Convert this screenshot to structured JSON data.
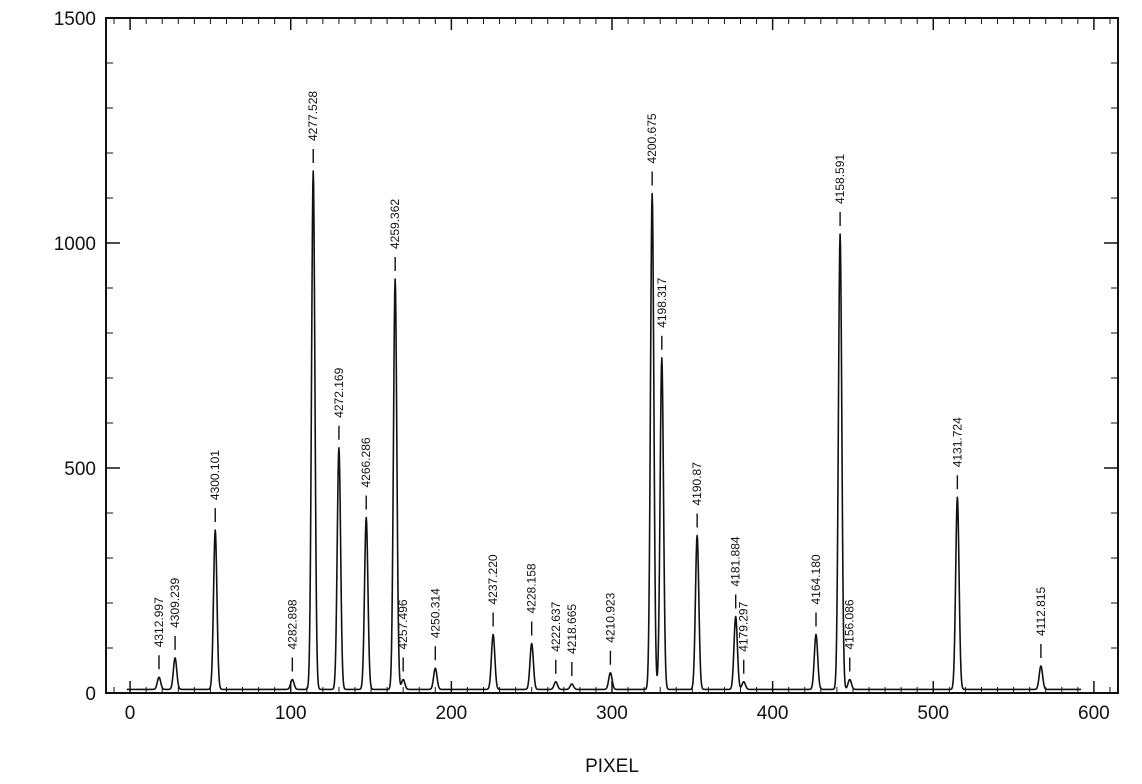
{
  "chart_data": {
    "type": "line",
    "title": "",
    "xlabel": "PIXEL",
    "ylabel": "",
    "xlim": [
      -15,
      615
    ],
    "ylim": [
      0,
      1500
    ],
    "x_ticks": [
      0,
      100,
      200,
      300,
      400,
      500,
      600
    ],
    "x_tick_labels": [
      "0",
      "100",
      "200",
      "300",
      "400",
      "500",
      "600"
    ],
    "y_ticks": [
      0,
      500,
      1000,
      1500
    ],
    "y_tick_labels": [
      "0",
      "500",
      "1000",
      "1500"
    ],
    "grid": false,
    "legend": "none",
    "line_color": "#111111",
    "baseline": 8,
    "peaks": [
      {
        "pixel": 18,
        "height": 35,
        "label": "4312.997"
      },
      {
        "pixel": 28,
        "height": 78,
        "label": "4309.239"
      },
      {
        "pixel": 53,
        "height": 362,
        "label": "4300.101"
      },
      {
        "pixel": 101,
        "height": 30,
        "label": "4282.898"
      },
      {
        "pixel": 114,
        "height": 1160,
        "label": "4277.528"
      },
      {
        "pixel": 130,
        "height": 545,
        "label": "4272.169"
      },
      {
        "pixel": 147,
        "height": 390,
        "label": "4266.286"
      },
      {
        "pixel": 165,
        "height": 920,
        "label": "4259.362"
      },
      {
        "pixel": 170,
        "height": 30,
        "label": "4257.496"
      },
      {
        "pixel": 190,
        "height": 55,
        "label": "4250.314"
      },
      {
        "pixel": 226,
        "height": 130,
        "label": "4237.220"
      },
      {
        "pixel": 250,
        "height": 110,
        "label": "4228.158"
      },
      {
        "pixel": 265,
        "height": 25,
        "label": "4222.637"
      },
      {
        "pixel": 275,
        "height": 20,
        "label": "4218.665"
      },
      {
        "pixel": 299,
        "height": 45,
        "label": "4210.923"
      },
      {
        "pixel": 325,
        "height": 1110,
        "label": "4200.675"
      },
      {
        "pixel": 331,
        "height": 745,
        "label": "4198.317"
      },
      {
        "pixel": 353,
        "height": 350,
        "label": "4190.87"
      },
      {
        "pixel": 377,
        "height": 170,
        "label": "4181.884"
      },
      {
        "pixel": 382,
        "height": 25,
        "label": "4179.297"
      },
      {
        "pixel": 427,
        "height": 130,
        "label": "4164.180"
      },
      {
        "pixel": 442,
        "height": 1020,
        "label": "4158.591"
      },
      {
        "pixel": 448,
        "height": 30,
        "label": "4156.086"
      },
      {
        "pixel": 515,
        "height": 435,
        "label": "4131.724"
      },
      {
        "pixel": 567,
        "height": 60,
        "label": "4112.815"
      }
    ]
  }
}
